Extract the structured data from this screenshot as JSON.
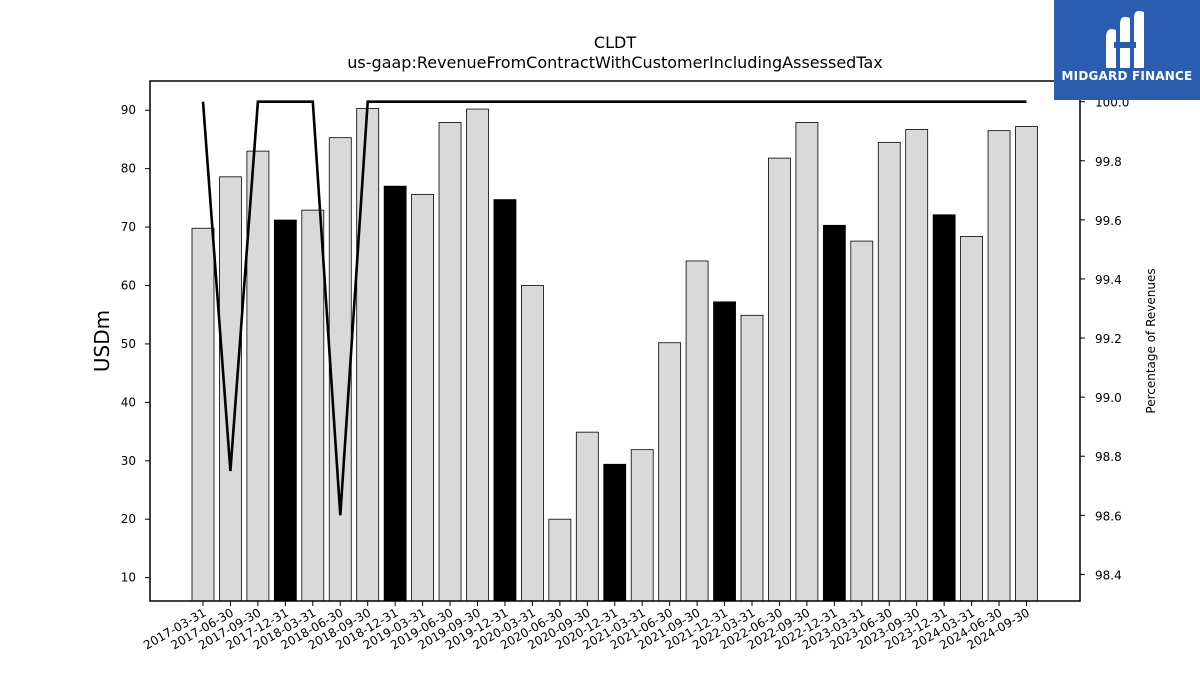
{
  "logo": {
    "text": "MIDGARD FINANCE",
    "color": "#2a5db0"
  },
  "chart_data": {
    "type": "bar",
    "title": "CLDT",
    "subtitle": "us-gaap:RevenueFromContractWithCustomerIncludingAssessedTax",
    "ylabel": "USDm",
    "y2label": "Percentage of Revenues",
    "ylim": [
      6,
      95
    ],
    "y2lim": [
      98.31,
      100.07
    ],
    "yticks": [
      10,
      20,
      30,
      40,
      50,
      60,
      70,
      80,
      90
    ],
    "y2ticks": [
      "98.4",
      "98.6",
      "98.8",
      "99.0",
      "99.2",
      "99.4",
      "99.6",
      "99.8",
      "100.0"
    ],
    "categories": [
      "2017-03-31",
      "2017-06-30",
      "2017-09-30",
      "2017-12-31",
      "2018-03-31",
      "2018-06-30",
      "2018-09-30",
      "2018-12-31",
      "2019-03-31",
      "2019-06-30",
      "2019-09-30",
      "2019-12-31",
      "2020-03-31",
      "2020-06-30",
      "2020-09-30",
      "2020-12-31",
      "2021-03-31",
      "2021-06-30",
      "2021-09-30",
      "2021-12-31",
      "2022-03-31",
      "2022-06-30",
      "2022-09-30",
      "2022-12-31",
      "2023-03-31",
      "2023-06-30",
      "2023-09-30",
      "2023-12-31",
      "2024-03-31",
      "2024-06-30",
      "2024-09-30"
    ],
    "values": [
      69.8,
      78.6,
      83.0,
      71.2,
      72.9,
      85.3,
      90.3,
      77.0,
      75.6,
      87.9,
      90.2,
      74.7,
      60.0,
      20.0,
      34.9,
      29.4,
      31.9,
      50.2,
      64.2,
      57.2,
      54.9,
      81.8,
      87.9,
      70.3,
      67.6,
      84.5,
      86.7,
      72.1,
      68.4,
      86.5,
      87.2
    ],
    "highlight": [
      false,
      false,
      false,
      true,
      false,
      false,
      false,
      true,
      false,
      false,
      false,
      true,
      false,
      false,
      false,
      true,
      false,
      false,
      false,
      true,
      false,
      false,
      false,
      true,
      false,
      false,
      false,
      true,
      false,
      false,
      false
    ],
    "line_values": [
      100.0,
      98.75,
      100.0,
      100.0,
      100.0,
      98.6,
      100.0,
      100.0,
      100.0,
      100.0,
      100.0,
      100.0,
      100.0,
      100.0,
      100.0,
      100.0,
      100.0,
      100.0,
      100.0,
      100.0,
      100.0,
      100.0,
      100.0,
      100.0,
      100.0,
      100.0,
      100.0,
      100.0,
      100.0,
      100.0,
      100.0
    ],
    "colors": {
      "bar": "#d9d9d9",
      "bar_highlight": "#000000",
      "line": "#000000"
    },
    "grid": false,
    "legend": "none"
  }
}
